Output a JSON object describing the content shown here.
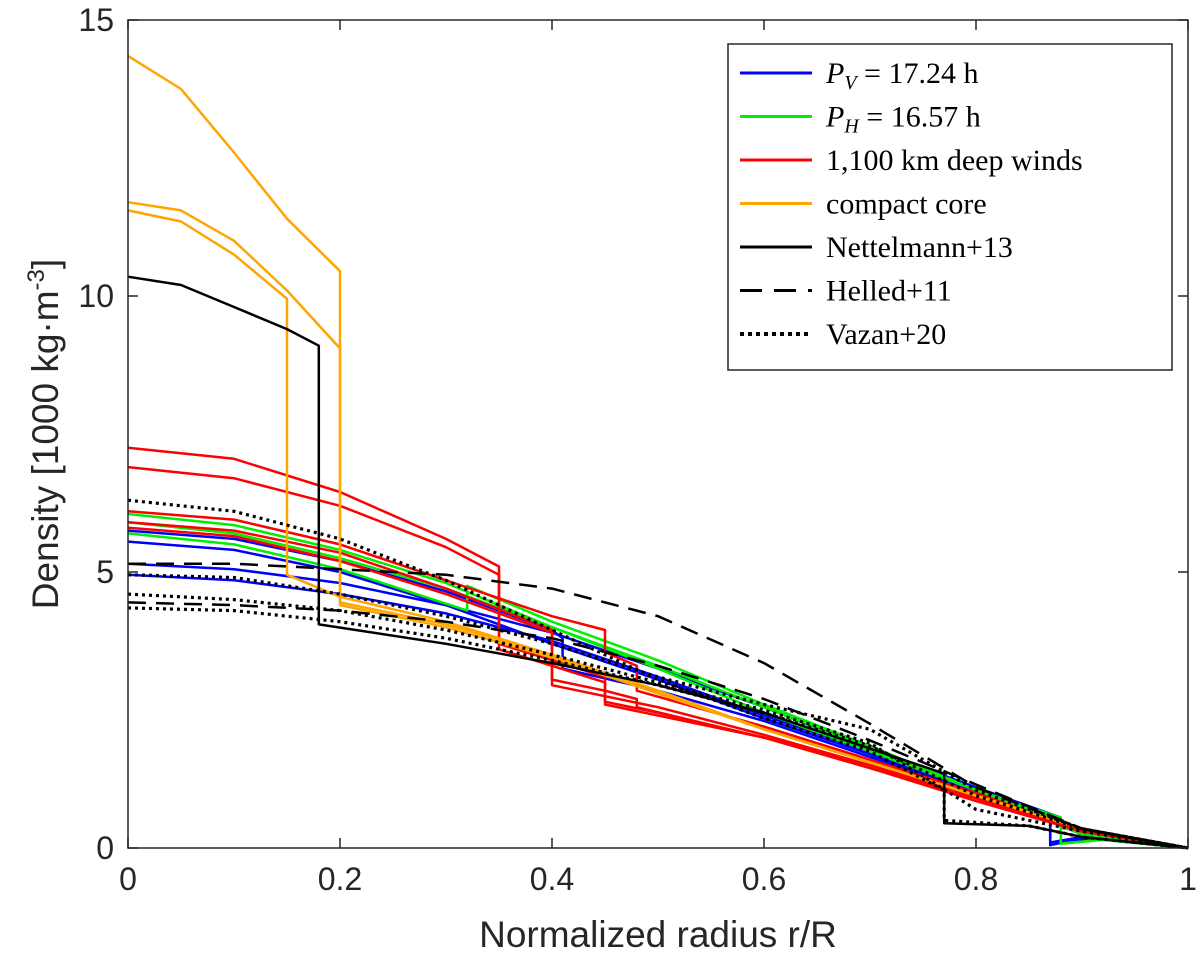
{
  "chart_data": {
    "type": "line",
    "xlabel": "Normalized radius r/R",
    "ylabel_main": "Density [1000 kg·m",
    "ylabel_sup": "-3",
    "ylabel_end": "]",
    "xlim": [
      0,
      1
    ],
    "ylim": [
      0,
      15
    ],
    "xticks": [
      {
        "value": 0,
        "label": "0"
      },
      {
        "value": 0.2,
        "label": "0.2"
      },
      {
        "value": 0.4,
        "label": "0.4"
      },
      {
        "value": 0.6,
        "label": "0.6"
      },
      {
        "value": 0.8,
        "label": "0.8"
      },
      {
        "value": 1,
        "label": "1"
      }
    ],
    "yticks": [
      {
        "value": 0,
        "label": "0"
      },
      {
        "value": 5,
        "label": "5"
      },
      {
        "value": 10,
        "label": "10"
      },
      {
        "value": 15,
        "label": "15"
      }
    ],
    "legend_position": "top-right",
    "legend": [
      {
        "italic": "P",
        "sub": "V",
        "text": " = 17.24 h",
        "color": "#0000ff",
        "dash": "solid"
      },
      {
        "italic": "P",
        "sub": "H",
        "text": " = 16.57 h",
        "color": "#00ee00",
        "dash": "solid"
      },
      {
        "italic": "",
        "sub": "",
        "text": "1,100 km deep winds",
        "color": "#ff0000",
        "dash": "solid"
      },
      {
        "italic": "",
        "sub": "",
        "text": "compact core",
        "color": "#ffa500",
        "dash": "solid"
      },
      {
        "italic": "",
        "sub": "",
        "text": "Nettelmann+13",
        "color": "#000000",
        "dash": "solid"
      },
      {
        "italic": "",
        "sub": "",
        "text": "Helled+11",
        "color": "#000000",
        "dash": "dashed"
      },
      {
        "italic": "",
        "sub": "",
        "text": "Vazan+20",
        "color": "#000000",
        "dash": "dotted"
      }
    ],
    "series": [
      {
        "group": "PV",
        "color": "#0000ff",
        "dash": "solid",
        "x": [
          0,
          0.1,
          0.2,
          0.3,
          0.4,
          0.5,
          0.6,
          0.7,
          0.8,
          0.87,
          0.87,
          0.9,
          0.95,
          1
        ],
        "y": [
          5.55,
          5.4,
          5.0,
          4.4,
          3.7,
          3.05,
          2.35,
          1.7,
          1.0,
          0.55,
          0.05,
          0.18,
          0.12,
          0
        ]
      },
      {
        "group": "PV",
        "color": "#0000ff",
        "dash": "solid",
        "x": [
          0,
          0.1,
          0.2,
          0.3,
          0.4,
          0.5,
          0.6,
          0.7,
          0.8,
          0.87,
          0.87,
          0.9,
          0.95,
          1
        ],
        "y": [
          4.95,
          4.85,
          4.6,
          4.25,
          3.75,
          3.1,
          2.4,
          1.75,
          1.05,
          0.6,
          0.1,
          0.2,
          0.12,
          0
        ]
      },
      {
        "group": "PV",
        "color": "#0000ff",
        "dash": "solid",
        "x": [
          0,
          0.1,
          0.2,
          0.3,
          0.4,
          0.5,
          0.6,
          0.7,
          0.8,
          0.88,
          0.88,
          0.92,
          1
        ],
        "y": [
          5.15,
          5.05,
          4.8,
          4.4,
          3.9,
          3.25,
          2.55,
          1.8,
          1.1,
          0.55,
          0.12,
          0.15,
          0
        ]
      },
      {
        "group": "PV",
        "color": "#0000ff",
        "dash": "solid",
        "x": [
          0,
          0.1,
          0.2,
          0.3,
          0.4,
          0.41,
          0.41,
          0.5,
          0.6,
          0.7,
          0.8,
          0.9,
          1
        ],
        "y": [
          5.75,
          5.6,
          5.2,
          4.65,
          3.95,
          3.8,
          3.25,
          2.85,
          2.3,
          1.65,
          1.0,
          0.25,
          0
        ]
      },
      {
        "group": "PH",
        "color": "#00ee00",
        "dash": "solid",
        "x": [
          0,
          0.1,
          0.2,
          0.3,
          0.4,
          0.5,
          0.6,
          0.7,
          0.8,
          0.88,
          0.88,
          0.92,
          1
        ],
        "y": [
          6.05,
          5.85,
          5.4,
          4.8,
          4.0,
          3.25,
          2.45,
          1.75,
          1.05,
          0.5,
          0.08,
          0.15,
          0
        ]
      },
      {
        "group": "PH",
        "color": "#00ee00",
        "dash": "solid",
        "x": [
          0,
          0.1,
          0.2,
          0.3,
          0.4,
          0.5,
          0.6,
          0.7,
          0.8,
          0.88,
          0.88,
          0.92,
          1
        ],
        "y": [
          5.9,
          5.7,
          5.25,
          4.7,
          4.0,
          3.3,
          2.55,
          1.8,
          1.05,
          0.55,
          0.08,
          0.15,
          0
        ]
      },
      {
        "group": "PH",
        "color": "#00ee00",
        "dash": "solid",
        "x": [
          0,
          0.1,
          0.2,
          0.32,
          0.32,
          0.4,
          0.5,
          0.6,
          0.7,
          0.8,
          0.9,
          1
        ],
        "y": [
          5.7,
          5.5,
          5.05,
          4.3,
          4.75,
          4.1,
          3.4,
          2.6,
          1.85,
          1.05,
          0.25,
          0
        ]
      },
      {
        "group": "wind",
        "color": "#ff0000",
        "dash": "solid",
        "x": [
          0,
          0.1,
          0.2,
          0.3,
          0.35,
          0.35,
          0.4,
          0.45,
          0.45,
          0.5,
          0.6,
          0.7,
          0.8,
          0.9,
          1
        ],
        "y": [
          7.25,
          7.05,
          6.45,
          5.6,
          5.1,
          3.7,
          3.4,
          3.1,
          2.75,
          2.55,
          2.05,
          1.5,
          0.9,
          0.3,
          0
        ]
      },
      {
        "group": "wind",
        "color": "#ff0000",
        "dash": "solid",
        "x": [
          0,
          0.1,
          0.2,
          0.3,
          0.35,
          0.35,
          0.4,
          0.45,
          0.45,
          0.5,
          0.6,
          0.7,
          0.8,
          0.9,
          1
        ],
        "y": [
          6.9,
          6.7,
          6.2,
          5.45,
          4.95,
          3.6,
          3.3,
          3.0,
          2.65,
          2.45,
          2.0,
          1.45,
          0.85,
          0.3,
          0
        ]
      },
      {
        "group": "wind",
        "color": "#ff0000",
        "dash": "solid",
        "x": [
          0,
          0.1,
          0.2,
          0.3,
          0.4,
          0.45,
          0.45,
          0.48,
          0.48,
          0.6,
          0.7,
          0.8,
          0.9,
          1
        ],
        "y": [
          6.1,
          5.95,
          5.5,
          4.85,
          4.2,
          3.95,
          3.55,
          3.3,
          2.85,
          2.2,
          1.6,
          1.0,
          0.3,
          0
        ]
      },
      {
        "group": "wind",
        "color": "#ff0000",
        "dash": "solid",
        "x": [
          0,
          0.1,
          0.2,
          0.3,
          0.4,
          0.4,
          0.45,
          0.48,
          0.48,
          0.6,
          0.7,
          0.8,
          0.9,
          1
        ],
        "y": [
          5.9,
          5.75,
          5.35,
          4.7,
          3.95,
          3.05,
          2.85,
          2.7,
          2.55,
          2.0,
          1.5,
          0.95,
          0.3,
          0
        ]
      },
      {
        "group": "wind",
        "color": "#ff0000",
        "dash": "solid",
        "x": [
          0,
          0.1,
          0.2,
          0.3,
          0.4,
          0.4,
          0.45,
          0.45,
          0.6,
          0.7,
          0.8,
          0.9,
          1
        ],
        "y": [
          5.8,
          5.65,
          5.2,
          4.6,
          3.9,
          2.95,
          2.75,
          2.6,
          2.0,
          1.45,
          0.9,
          0.3,
          0
        ]
      },
      {
        "group": "core",
        "color": "#ffa500",
        "dash": "solid",
        "x": [
          0,
          0.05,
          0.1,
          0.15,
          0.2,
          0.2,
          0.3,
          0.4,
          0.5,
          0.6,
          0.7,
          0.8,
          0.9,
          1
        ],
        "y": [
          14.35,
          13.75,
          12.6,
          11.4,
          10.45,
          4.45,
          4.05,
          3.5,
          2.85,
          2.15,
          1.55,
          0.95,
          0.35,
          0
        ]
      },
      {
        "group": "core",
        "color": "#ffa500",
        "dash": "solid",
        "x": [
          0,
          0.05,
          0.1,
          0.15,
          0.2,
          0.2,
          0.3,
          0.4,
          0.5,
          0.6,
          0.7,
          0.8,
          0.9,
          1
        ],
        "y": [
          11.7,
          11.55,
          11.0,
          10.1,
          9.05,
          4.4,
          4.0,
          3.45,
          2.8,
          2.15,
          1.55,
          0.95,
          0.35,
          0
        ]
      },
      {
        "group": "core",
        "color": "#ffa500",
        "dash": "solid",
        "x": [
          0,
          0.05,
          0.1,
          0.15,
          0.15,
          0.2,
          0.3,
          0.4,
          0.5,
          0.6,
          0.7,
          0.8,
          0.9,
          1
        ],
        "y": [
          11.55,
          11.35,
          10.75,
          9.95,
          4.95,
          4.55,
          4.1,
          3.5,
          2.85,
          2.15,
          1.55,
          0.95,
          0.35,
          0
        ]
      },
      {
        "group": "nettelmann",
        "color": "#000000",
        "dash": "solid",
        "x": [
          0,
          0.05,
          0.1,
          0.15,
          0.18,
          0.18,
          0.3,
          0.4,
          0.5,
          0.6,
          0.7,
          0.77,
          0.77,
          0.85,
          0.9,
          1
        ],
        "y": [
          10.35,
          10.2,
          9.8,
          9.4,
          9.1,
          4.05,
          3.7,
          3.35,
          2.95,
          2.45,
          1.8,
          1.35,
          0.45,
          0.4,
          0.2,
          0
        ]
      },
      {
        "group": "helled",
        "color": "#000000",
        "dash": "dashed",
        "x": [
          0,
          0.1,
          0.2,
          0.3,
          0.4,
          0.5,
          0.6,
          0.7,
          0.8,
          0.9,
          1
        ],
        "y": [
          5.15,
          5.15,
          5.05,
          4.95,
          4.7,
          4.2,
          3.35,
          2.25,
          1.1,
          0.35,
          0
        ]
      },
      {
        "group": "helled",
        "color": "#000000",
        "dash": "dashed",
        "x": [
          0,
          0.1,
          0.2,
          0.3,
          0.4,
          0.5,
          0.6,
          0.7,
          0.8,
          0.9,
          1
        ],
        "y": [
          4.45,
          4.4,
          4.3,
          4.1,
          3.8,
          3.3,
          2.7,
          1.95,
          1.15,
          0.35,
          0
        ]
      },
      {
        "group": "vazan",
        "color": "#000000",
        "dash": "dotted",
        "x": [
          0,
          0.1,
          0.2,
          0.3,
          0.4,
          0.5,
          0.6,
          0.7,
          0.77,
          0.77,
          0.85,
          0.9,
          1
        ],
        "y": [
          6.3,
          6.1,
          5.6,
          4.85,
          3.95,
          3.05,
          2.35,
          1.75,
          1.05,
          0.5,
          0.4,
          0.2,
          0
        ]
      },
      {
        "group": "vazan",
        "color": "#000000",
        "dash": "dotted",
        "x": [
          0,
          0.1,
          0.2,
          0.3,
          0.4,
          0.5,
          0.6,
          0.7,
          0.8,
          0.9,
          1
        ],
        "y": [
          4.95,
          4.9,
          4.6,
          4.2,
          3.7,
          3.1,
          2.6,
          2.15,
          1.05,
          0.35,
          0
        ]
      },
      {
        "group": "vazan",
        "color": "#000000",
        "dash": "dotted",
        "x": [
          0,
          0.1,
          0.2,
          0.3,
          0.4,
          0.5,
          0.6,
          0.7,
          0.8,
          0.9,
          1
        ],
        "y": [
          4.6,
          4.5,
          4.3,
          3.95,
          3.5,
          3.0,
          2.5,
          1.9,
          0.7,
          0.3,
          0
        ]
      },
      {
        "group": "vazan",
        "color": "#000000",
        "dash": "dotted",
        "x": [
          0,
          0.1,
          0.2,
          0.3,
          0.4,
          0.5,
          0.6,
          0.7,
          0.8,
          0.9,
          1
        ],
        "y": [
          4.35,
          4.3,
          4.1,
          3.8,
          3.4,
          2.95,
          2.45,
          1.85,
          0.95,
          0.35,
          0
        ]
      }
    ]
  }
}
